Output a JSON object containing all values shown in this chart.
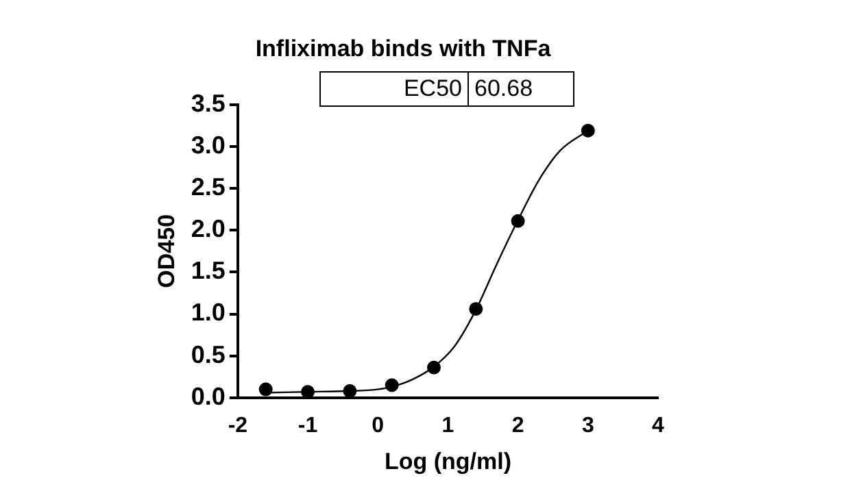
{
  "chart_data": {
    "type": "scatter",
    "title": "Infliximab binds with TNFa",
    "xlabel": "Log (ng/ml)",
    "ylabel": "OD450",
    "annotations": [
      "EC50",
      "60.68"
    ],
    "series": [
      {
        "color": "#000000",
        "x": [
          -1.6,
          -1.0,
          -0.4,
          0.2,
          0.8,
          1.4,
          2.0,
          3.0
        ],
        "values": [
          0.1,
          0.07,
          0.08,
          0.15,
          0.36,
          1.06,
          2.11,
          3.19
        ]
      },
      {
        "type": "line",
        "color": "#000000",
        "marker": "none",
        "x": [
          -1.6,
          -1.0,
          -0.4,
          0,
          0.2,
          0.5,
          0.8,
          1.1,
          1.4,
          1.7,
          2.0,
          2.3,
          2.6,
          3.0
        ],
        "values": [
          0.06,
          0.07,
          0.08,
          0.1,
          0.13,
          0.22,
          0.37,
          0.62,
          1.05,
          1.6,
          2.12,
          2.6,
          2.95,
          3.19
        ]
      }
    ],
    "xlim": [
      -2,
      4
    ],
    "xticks": [
      -2,
      -1,
      0,
      1,
      2,
      3,
      4
    ],
    "ylim": [
      0,
      3.5
    ],
    "yticks": [
      {
        "value": 0,
        "label": "0.0"
      },
      {
        "value": 0.5,
        "label": "0.5"
      },
      {
        "value": 1,
        "label": "1.0"
      },
      {
        "value": 1.5,
        "label": "1.5"
      },
      {
        "value": 2,
        "label": "2.0"
      },
      {
        "value": 2.5,
        "label": "2.5"
      },
      {
        "value": 3,
        "label": "3.0"
      },
      {
        "value": 3.5,
        "label": "3.5"
      }
    ],
    "grid": false,
    "legend": false,
    "marker": "circle"
  }
}
